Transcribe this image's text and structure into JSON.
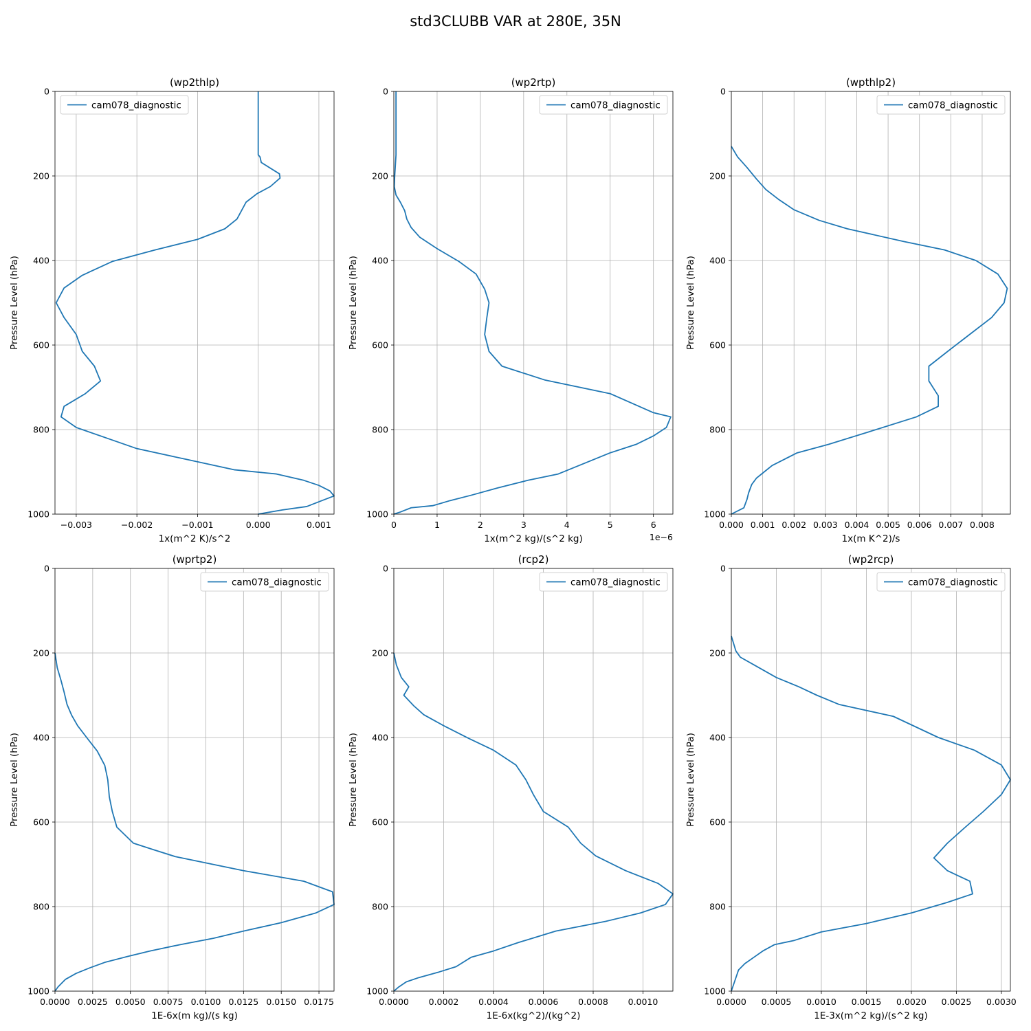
{
  "figure": {
    "title": "std3CLUBB VAR at 280E, 35N"
  },
  "colors": {
    "series": "#1f77b4",
    "grid": "#b0b0b0"
  },
  "chart_data": [
    {
      "type": "line",
      "title": "(wp2thlp)",
      "xlabel": "1x(m^2 K)/s^2",
      "ylabel": "Pressure Level (hPa)",
      "xlim": [
        -0.00335,
        0.00125
      ],
      "ylim": [
        1000,
        0
      ],
      "xticks": [
        -0.003,
        -0.002,
        -0.001,
        0.0,
        0.001
      ],
      "xtick_labels": [
        "−0.003",
        "−0.002",
        "−0.001",
        "0.000",
        "0.001"
      ],
      "yticks": [
        0,
        200,
        400,
        600,
        800,
        1000
      ],
      "ytick_labels": [
        "0",
        "200",
        "400",
        "600",
        "800",
        "1000"
      ],
      "x_offset_label": "",
      "grid": true,
      "legend_position": "upper-left",
      "series": [
        {
          "name": "cam078_diagnostic",
          "x": [
            0.0,
            0.0,
            0.0,
            3e-05,
            5e-05,
            0.00035,
            0.00036,
            0.0002,
            -2e-05,
            -0.0002,
            -0.00035,
            -0.00055,
            -0.001,
            -0.0017,
            -0.0024,
            -0.0029,
            -0.0032,
            -0.00333,
            -0.0032,
            -0.003,
            -0.0029,
            -0.0027,
            -0.0026,
            -0.00285,
            -0.0032,
            -0.00325,
            -0.003,
            -0.0025,
            -0.002,
            -0.0012,
            -0.0004,
            0.0003,
            0.00075,
            0.001,
            0.00118,
            0.00125,
            0.00105,
            0.0008,
            0.0004,
            0.0
          ],
          "y": [
            0,
            100,
            150,
            155,
            168,
            195,
            205,
            225,
            242,
            262,
            302,
            325,
            350,
            375,
            402,
            435,
            465,
            500,
            535,
            575,
            615,
            650,
            685,
            715,
            745,
            770,
            795,
            820,
            845,
            870,
            895,
            905,
            920,
            932,
            945,
            957,
            968,
            982,
            990,
            1000
          ]
        }
      ]
    },
    {
      "type": "line",
      "title": "(wp2rtp)",
      "xlabel": "1x(m^2 kg)/(s^2 kg)",
      "ylabel": "Pressure Level (hPa)",
      "xlim": [
        0,
        6.45e-06
      ],
      "ylim": [
        1000,
        0
      ],
      "xticks": [
        0,
        1e-06,
        2e-06,
        3e-06,
        4e-06,
        5e-06,
        6e-06
      ],
      "xtick_labels": [
        "0",
        "1",
        "2",
        "3",
        "4",
        "5",
        "6"
      ],
      "yticks": [
        0,
        200,
        400,
        600,
        800,
        1000
      ],
      "ytick_labels": [
        "0",
        "200",
        "400",
        "600",
        "800",
        "1000"
      ],
      "x_offset_label": "1e−6",
      "grid": true,
      "legend_position": "upper-right",
      "series": [
        {
          "name": "cam078_diagnostic",
          "x": [
            5e-08,
            5e-08,
            2e-08,
            1e-08,
            5e-08,
            1.5e-07,
            2.5e-07,
            3e-07,
            4e-07,
            6e-07,
            1e-06,
            1.5e-06,
            1.9e-06,
            2.1e-06,
            2.2e-06,
            2.15e-06,
            2.1e-06,
            2.2e-06,
            2.5e-06,
            3.5e-06,
            5e-06,
            6e-06,
            6.4e-06,
            6.3e-06,
            6e-06,
            5.6e-06,
            5e-06,
            4.4e-06,
            3.8e-06,
            3.1e-06,
            2.4e-06,
            1.8e-06,
            1.3e-06,
            9e-07,
            4e-07,
            1.5e-07,
            0.0
          ],
          "y": [
            0,
            150,
            200,
            225,
            245,
            262,
            282,
            302,
            322,
            345,
            372,
            402,
            432,
            468,
            500,
            535,
            575,
            615,
            650,
            683,
            715,
            760,
            770,
            795,
            815,
            835,
            855,
            880,
            905,
            920,
            938,
            955,
            968,
            980,
            985,
            995,
            1000
          ]
        }
      ]
    },
    {
      "type": "line",
      "title": "(wpthlp2)",
      "xlabel": "1x(m K^2)/s",
      "ylabel": "Pressure Level (hPa)",
      "xlim": [
        0,
        0.0089
      ],
      "ylim": [
        1000,
        0
      ],
      "xticks": [
        0.0,
        0.001,
        0.002,
        0.003,
        0.004,
        0.005,
        0.006,
        0.007,
        0.008
      ],
      "xtick_labels": [
        "0.000",
        "0.001",
        "0.002",
        "0.003",
        "0.004",
        "0.005",
        "0.006",
        "0.007",
        "0.008"
      ],
      "yticks": [
        0,
        200,
        400,
        600,
        800,
        1000
      ],
      "ytick_labels": [
        "0",
        "200",
        "400",
        "600",
        "800",
        "1000"
      ],
      "x_offset_label": "",
      "grid": true,
      "legend_position": "upper-right",
      "series": [
        {
          "name": "cam078_diagnostic",
          "x": [
            0.0,
            0.0002,
            0.0005,
            0.0008,
            0.0011,
            0.0015,
            0.002,
            0.0028,
            0.0037,
            0.0055,
            0.0068,
            0.0078,
            0.0085,
            0.0088,
            0.0087,
            0.0083,
            0.0076,
            0.0069,
            0.0063,
            0.0063,
            0.0066,
            0.0066,
            0.0059,
            0.0044,
            0.0031,
            0.0021,
            0.0017,
            0.0013,
            0.00105,
            0.0008,
            0.00065,
            0.00055,
            0.0005,
            0.0004,
            0.0
          ],
          "y": [
            130,
            155,
            180,
            207,
            232,
            255,
            280,
            305,
            325,
            355,
            375,
            400,
            432,
            466,
            500,
            535,
            575,
            615,
            650,
            685,
            720,
            745,
            770,
            805,
            835,
            855,
            870,
            885,
            900,
            915,
            930,
            950,
            965,
            985,
            1000
          ]
        }
      ]
    },
    {
      "type": "line",
      "title": "(wprtp2)",
      "xlabel": "1E-6x(m kg)/(s kg)",
      "ylabel": "Pressure Level (hPa)",
      "xlim": [
        0,
        0.0185
      ],
      "ylim": [
        1000,
        0
      ],
      "xticks": [
        0.0,
        0.0025,
        0.005,
        0.0075,
        0.01,
        0.0125,
        0.015,
        0.0175
      ],
      "xtick_labels": [
        "0.0000",
        "0.0025",
        "0.0050",
        "0.0075",
        "0.0100",
        "0.0125",
        "0.0150",
        "0.0175"
      ],
      "yticks": [
        0,
        200,
        400,
        600,
        800,
        1000
      ],
      "ytick_labels": [
        "0",
        "200",
        "400",
        "600",
        "800",
        "1000"
      ],
      "x_offset_label": "",
      "grid": true,
      "legend_position": "upper-right",
      "series": [
        {
          "name": "cam078_diagnostic",
          "x": [
            0.0,
            0.00015,
            0.0004,
            0.0006,
            0.0008,
            0.0011,
            0.0015,
            0.0021,
            0.0028,
            0.0033,
            0.0035,
            0.0036,
            0.0038,
            0.0041,
            0.0052,
            0.0065,
            0.008,
            0.0125,
            0.0165,
            0.0184,
            0.0185,
            0.0173,
            0.015,
            0.0125,
            0.0105,
            0.0083,
            0.0063,
            0.0048,
            0.0033,
            0.0023,
            0.0014,
            0.0007,
            0.0002,
            0.0
          ],
          "y": [
            200,
            235,
            265,
            292,
            322,
            347,
            372,
            400,
            432,
            466,
            500,
            540,
            575,
            612,
            650,
            665,
            682,
            715,
            740,
            765,
            795,
            815,
            838,
            858,
            875,
            890,
            905,
            918,
            932,
            945,
            958,
            972,
            990,
            1000
          ]
        }
      ]
    },
    {
      "type": "line",
      "title": "(rcp2)",
      "xlabel": "1E-6x(kg^2)/(kg^2)",
      "ylabel": "Pressure Level (hPa)",
      "xlim": [
        0,
        0.00112
      ],
      "ylim": [
        1000,
        0
      ],
      "xticks": [
        0.0,
        0.0002,
        0.0004,
        0.0006,
        0.0008,
        0.001
      ],
      "xtick_labels": [
        "0.0000",
        "0.0002",
        "0.0004",
        "0.0006",
        "0.0008",
        "0.0010"
      ],
      "yticks": [
        0,
        200,
        400,
        600,
        800,
        1000
      ],
      "ytick_labels": [
        "0",
        "200",
        "400",
        "600",
        "800",
        "1000"
      ],
      "x_offset_label": "",
      "grid": true,
      "legend_position": "upper-right",
      "series": [
        {
          "name": "cam078_diagnostic",
          "x": [
            0.0,
            1e-05,
            3e-05,
            6e-05,
            4e-05,
            8e-05,
            0.00012,
            0.0002,
            0.0003,
            0.0004,
            0.00049,
            0.00053,
            0.00056,
            0.0006,
            0.0007,
            0.00075,
            0.00081,
            0.00093,
            0.00106,
            0.00112,
            0.00109,
            0.00099,
            0.00085,
            0.00065,
            0.0005,
            0.0004,
            0.00031,
            0.00025,
            0.00018,
            0.0001,
            5e-05,
            2e-05,
            0.0
          ],
          "y": [
            200,
            228,
            258,
            280,
            300,
            325,
            346,
            372,
            402,
            430,
            465,
            500,
            535,
            575,
            612,
            650,
            680,
            715,
            745,
            770,
            795,
            815,
            835,
            858,
            885,
            905,
            920,
            942,
            955,
            968,
            978,
            990,
            1000
          ]
        }
      ]
    },
    {
      "type": "line",
      "title": "(wp2rcp)",
      "xlabel": "1E-3x(m^2 kg)/(s^2 kg)",
      "ylabel": "Pressure Level (hPa)",
      "xlim": [
        0,
        0.0031
      ],
      "ylim": [
        1000,
        0
      ],
      "xticks": [
        0.0,
        0.0005,
        0.001,
        0.0015,
        0.002,
        0.0025,
        0.003
      ],
      "xtick_labels": [
        "0.0000",
        "0.0005",
        "0.0010",
        "0.0015",
        "0.0020",
        "0.0025",
        "0.0030"
      ],
      "yticks": [
        0,
        200,
        400,
        600,
        800,
        1000
      ],
      "ytick_labels": [
        "0",
        "200",
        "400",
        "600",
        "800",
        "1000"
      ],
      "x_offset_label": "",
      "grid": true,
      "legend_position": "upper-right",
      "series": [
        {
          "name": "cam078_diagnostic",
          "x": [
            0.0,
            5e-05,
            0.0001,
            0.00025,
            0.0005,
            0.00075,
            0.00095,
            0.0012,
            0.0018,
            0.0023,
            0.0027,
            0.003,
            0.0031,
            0.003,
            0.0028,
            0.0026,
            0.0024,
            0.00225,
            0.0024,
            0.00265,
            0.00268,
            0.0024,
            0.002,
            0.0015,
            0.001,
            0.0007,
            0.00048,
            0.00035,
            0.00025,
            0.00015,
            8e-05,
            4e-05,
            0.0
          ],
          "y": [
            160,
            195,
            210,
            228,
            258,
            280,
            300,
            322,
            350,
            400,
            430,
            465,
            500,
            535,
            575,
            612,
            650,
            685,
            715,
            740,
            770,
            790,
            815,
            840,
            860,
            880,
            890,
            905,
            920,
            935,
            950,
            975,
            1000
          ]
        }
      ]
    }
  ]
}
